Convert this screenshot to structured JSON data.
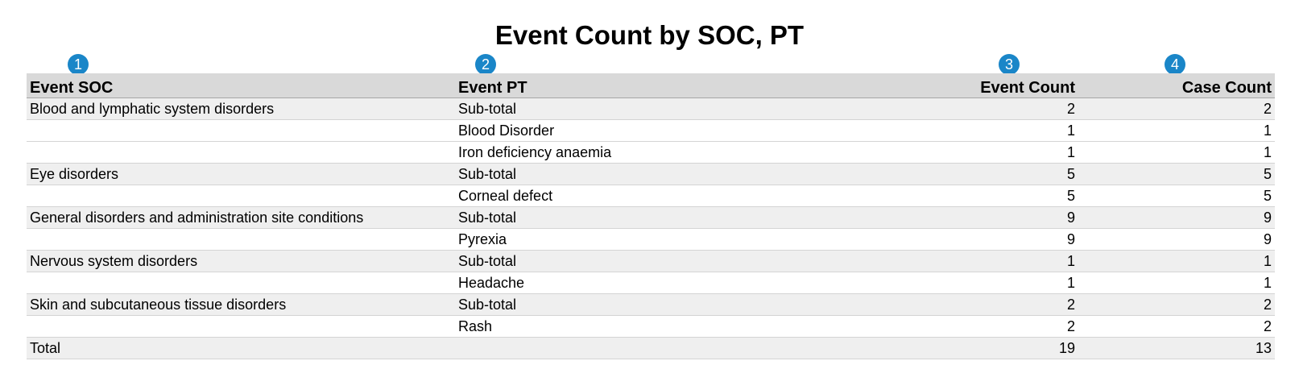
{
  "title": "Event Count by SOC, PT",
  "badges": [
    "1",
    "2",
    "3",
    "4"
  ],
  "columns": [
    "Event SOC",
    "Event PT",
    "Event Count",
    "Case Count"
  ],
  "rows": [
    {
      "soc": "Blood and lymphatic system disorders",
      "pt": "Sub-total",
      "event_count": "2",
      "case_count": "2"
    },
    {
      "soc": "",
      "pt": "Blood Disorder",
      "event_count": "1",
      "case_count": "1"
    },
    {
      "soc": "",
      "pt": "Iron deficiency anaemia",
      "event_count": "1",
      "case_count": "1"
    },
    {
      "soc": "Eye disorders",
      "pt": "Sub-total",
      "event_count": "5",
      "case_count": "5"
    },
    {
      "soc": "",
      "pt": "Corneal defect",
      "event_count": "5",
      "case_count": "5"
    },
    {
      "soc": "General disorders and administration site conditions",
      "pt": "Sub-total",
      "event_count": "9",
      "case_count": "9"
    },
    {
      "soc": "",
      "pt": "Pyrexia",
      "event_count": "9",
      "case_count": "9"
    },
    {
      "soc": "Nervous system disorders",
      "pt": "Sub-total",
      "event_count": "1",
      "case_count": "1"
    },
    {
      "soc": "",
      "pt": "Headache",
      "event_count": "1",
      "case_count": "1"
    },
    {
      "soc": "Skin and subcutaneous tissue disorders",
      "pt": "Sub-total",
      "event_count": "2",
      "case_count": "2"
    },
    {
      "soc": "",
      "pt": "Rash",
      "event_count": "2",
      "case_count": "2"
    },
    {
      "soc": "Total",
      "pt": "",
      "event_count": "19",
      "case_count": "13"
    }
  ],
  "colors": {
    "header_bg": "#d9d9d9",
    "row_shade": "#efefef",
    "badge": "#1a86c8"
  }
}
